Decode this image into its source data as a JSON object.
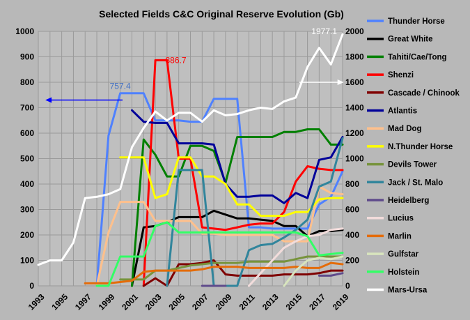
{
  "chart_data": {
    "type": "line",
    "title": "Selected Fields C&C Original Reserve Evolution (Gb)",
    "x": [
      1993,
      1994,
      1995,
      1996,
      1997,
      1998,
      1999,
      2000,
      2001,
      2002,
      2003,
      2004,
      2005,
      2006,
      2007,
      2008,
      2009,
      2010,
      2011,
      2012,
      2013,
      2014,
      2015,
      2016,
      2017,
      2018,
      2019
    ],
    "x_tick_labels": [
      "1993",
      "1995",
      "1997",
      "1999",
      "2001",
      "2003",
      "2005",
      "2007",
      "2009",
      "2011",
      "2013",
      "2015",
      "2017",
      "2019"
    ],
    "ylim_left": [
      0,
      1000
    ],
    "ylim_right": [
      0,
      2000
    ],
    "y_left_ticks": [
      "0",
      "100",
      "200",
      "300",
      "400",
      "500",
      "600",
      "700",
      "800",
      "900",
      "1000"
    ],
    "y_right_ticks": [
      "0",
      "200",
      "400",
      "600",
      "800",
      "1000",
      "1200",
      "1400",
      "1600",
      "1800",
      "2000"
    ],
    "grid": true,
    "legend_position": "right",
    "annotations": [
      {
        "text": "757.4",
        "color": "#4472c4",
        "x": 2000,
        "y": 757.4,
        "axis": "left"
      },
      {
        "text": "886.7",
        "color": "#ff0000",
        "x": 2003.5,
        "y": 886.7,
        "axis": "left"
      },
      {
        "text": "1977.1",
        "color": "#ffffff",
        "x": 2019,
        "y": 1977.1,
        "axis": "right"
      }
    ],
    "series": [
      {
        "name": "Thunder Horse",
        "color": "#4f81ff",
        "axis": "left",
        "values": [
          null,
          null,
          null,
          null,
          null,
          0,
          590,
          757,
          757,
          757,
          650,
          650,
          650,
          645,
          645,
          735,
          735,
          735,
          230,
          230,
          225,
          225,
          225,
          225,
          320,
          350,
          450
        ]
      },
      {
        "name": "Great White",
        "color": "#000000",
        "axis": "left",
        "values": [
          null,
          null,
          null,
          null,
          null,
          null,
          null,
          null,
          0,
          230,
          235,
          250,
          270,
          270,
          270,
          295,
          280,
          265,
          265,
          260,
          255,
          235,
          235,
          195,
          215,
          215,
          220
        ]
      },
      {
        "name": "Tahiti/Cae/Tong",
        "color": "#008000",
        "axis": "left",
        "values": [
          null,
          null,
          null,
          null,
          null,
          null,
          null,
          null,
          0,
          575,
          515,
          430,
          430,
          550,
          550,
          530,
          405,
          585,
          585,
          585,
          585,
          605,
          605,
          615,
          615,
          555,
          555
        ]
      },
      {
        "name": "Shenzi",
        "color": "#ff0000",
        "axis": "left",
        "values": [
          null,
          null,
          null,
          null,
          null,
          null,
          null,
          null,
          null,
          0,
          886.7,
          886.7,
          500,
          500,
          230,
          225,
          220,
          230,
          240,
          245,
          245,
          290,
          410,
          470,
          460,
          455,
          455
        ]
      },
      {
        "name": "Cascade / Chinook",
        "color": "#7f0000",
        "axis": "left",
        "values": [
          null,
          null,
          null,
          null,
          null,
          null,
          null,
          null,
          null,
          0,
          30,
          0,
          85,
          85,
          90,
          100,
          45,
          40,
          40,
          40,
          40,
          45,
          45,
          45,
          50,
          60,
          60
        ]
      },
      {
        "name": "Atlantis",
        "color": "#000099",
        "axis": "left",
        "values": [
          null,
          null,
          null,
          null,
          null,
          null,
          null,
          null,
          690,
          645,
          640,
          640,
          560,
          560,
          560,
          555,
          400,
          350,
          350,
          355,
          355,
          325,
          365,
          345,
          495,
          505,
          585
        ]
      },
      {
        "name": "Mad Dog",
        "color": "#ffc08c",
        "axis": "left",
        "values": [
          null,
          null,
          null,
          null,
          null,
          0,
          210,
          330,
          330,
          330,
          255,
          255,
          255,
          255,
          205,
          205,
          200,
          200,
          200,
          200,
          200,
          175,
          175,
          175,
          390,
          365,
          360
        ]
      },
      {
        "name": "N.Thunder Horse",
        "color": "#ffff00",
        "axis": "left",
        "values": [
          null,
          null,
          null,
          null,
          null,
          null,
          null,
          505,
          505,
          505,
          345,
          360,
          505,
          505,
          430,
          430,
          400,
          320,
          320,
          275,
          275,
          275,
          290,
          290,
          340,
          345,
          345
        ]
      },
      {
        "name": "Devils Tower",
        "color": "#77933c",
        "axis": "left",
        "values": [
          null,
          null,
          null,
          null,
          null,
          null,
          null,
          25,
          25,
          25,
          60,
          60,
          70,
          80,
          85,
          90,
          90,
          90,
          95,
          95,
          95,
          95,
          105,
          115,
          115,
          115,
          115
        ]
      },
      {
        "name": "Jack / St. Malo",
        "color": "#31859c",
        "axis": "left",
        "values": [
          null,
          null,
          null,
          null,
          null,
          null,
          null,
          null,
          null,
          null,
          null,
          0,
          455,
          455,
          455,
          0,
          0,
          0,
          140,
          160,
          165,
          190,
          220,
          260,
          390,
          410,
          580
        ]
      },
      {
        "name": "Heidelberg",
        "color": "#5f4b8b",
        "axis": "left",
        "values": [
          null,
          null,
          null,
          null,
          null,
          null,
          null,
          null,
          null,
          null,
          null,
          null,
          null,
          null,
          0,
          0,
          0,
          null,
          null,
          null,
          null,
          null,
          null,
          null,
          40,
          40,
          50
        ]
      },
      {
        "name": "Lucius",
        "color": "#f2dcdb",
        "axis": "left",
        "values": [
          null,
          null,
          null,
          null,
          null,
          null,
          null,
          null,
          null,
          null,
          null,
          null,
          null,
          null,
          null,
          null,
          null,
          null,
          0,
          50,
          100,
          150,
          175,
          195,
          200,
          220,
          225
        ]
      },
      {
        "name": "Marlin",
        "color": "#e46c0a",
        "axis": "left",
        "values": [
          null,
          null,
          null,
          null,
          10,
          10,
          10,
          15,
          20,
          55,
          60,
          60,
          60,
          60,
          65,
          75,
          75,
          75,
          70,
          70,
          70,
          70,
          75,
          70,
          70,
          90,
          85
        ]
      },
      {
        "name": "Gulfstar",
        "color": "#d7e4bd",
        "axis": "left",
        "values": [
          null,
          null,
          null,
          null,
          null,
          null,
          null,
          null,
          null,
          null,
          null,
          null,
          null,
          null,
          null,
          null,
          null,
          null,
          null,
          null,
          null,
          0,
          60,
          100,
          110,
          105,
          115
        ]
      },
      {
        "name": "Holstein",
        "color": "#33ff66",
        "axis": "left",
        "values": [
          null,
          null,
          null,
          null,
          null,
          0,
          0,
          115,
          115,
          115,
          235,
          250,
          210,
          210,
          210,
          210,
          210,
          210,
          210,
          210,
          210,
          210,
          210,
          195,
          120,
          125,
          130
        ]
      },
      {
        "name": "Mars-Ursa",
        "color": "#ffffff",
        "axis": "right",
        "values": [
          165,
          200,
          200,
          340,
          690,
          700,
          720,
          760,
          1090,
          1240,
          1370,
          1300,
          1360,
          1360,
          1290,
          1380,
          1340,
          1350,
          1380,
          1400,
          1390,
          1450,
          1480,
          1720,
          1870,
          1740,
          1977.1
        ]
      }
    ]
  },
  "arrows": {
    "left_arrow_color": "#0000ff",
    "right_arrow_color": "#ffffff"
  }
}
